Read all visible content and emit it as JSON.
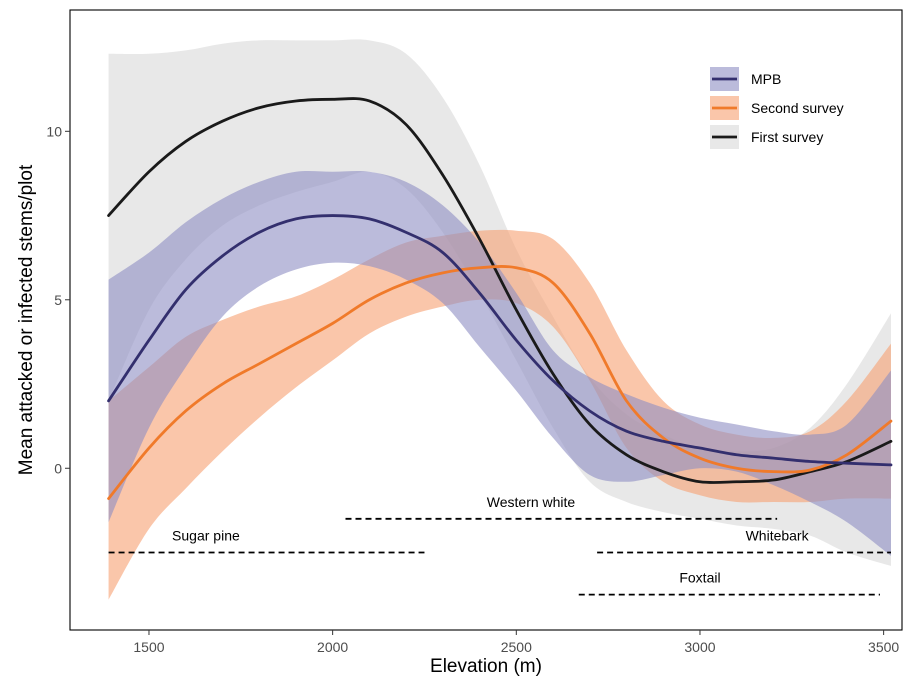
{
  "chart_data": {
    "type": "line",
    "xlabel": "Elevation (m)",
    "ylabel": "Mean attacked or infected stems/plot",
    "xlim": [
      1285,
      3550
    ],
    "ylim": [
      -4.8,
      13.6
    ],
    "xticks": [
      1500,
      2000,
      2500,
      3000,
      3500
    ],
    "yticks": [
      0,
      5,
      10
    ],
    "grid": false,
    "legend_position": "top-right",
    "series": [
      {
        "name": "First survey",
        "color": "#1a1a1a",
        "band_color": "#d9d9d9",
        "x": [
          1390,
          1500,
          1600,
          1700,
          1800,
          1900,
          2000,
          2100,
          2200,
          2300,
          2400,
          2500,
          2600,
          2700,
          2800,
          2900,
          3000,
          3100,
          3200,
          3300,
          3400,
          3520
        ],
        "y": [
          7.5,
          8.8,
          9.7,
          10.3,
          10.7,
          10.9,
          10.95,
          10.9,
          10.2,
          8.7,
          6.8,
          4.7,
          2.8,
          1.3,
          0.4,
          -0.1,
          -0.4,
          -0.4,
          -0.35,
          -0.1,
          0.2,
          0.8
        ],
        "lower": [
          2.0,
          4.7,
          6.2,
          7.2,
          7.8,
          8.2,
          8.5,
          8.8,
          8.3,
          7.0,
          5.2,
          3.2,
          1.2,
          -0.4,
          -1.0,
          -1.3,
          -1.5,
          -1.7,
          -1.8,
          -2.0,
          -2.5,
          -2.9
        ],
        "upper": [
          12.3,
          12.3,
          12.4,
          12.6,
          12.7,
          12.7,
          12.7,
          12.7,
          12.3,
          11.0,
          9.0,
          6.5,
          4.5,
          2.7,
          1.6,
          1.0,
          0.6,
          0.5,
          0.6,
          1.2,
          2.5,
          4.6
        ]
      },
      {
        "name": "Second survey",
        "color": "#f07a2a",
        "band_color": "#f7a072",
        "x": [
          1390,
          1500,
          1600,
          1700,
          1800,
          1900,
          2000,
          2100,
          2200,
          2300,
          2400,
          2500,
          2600,
          2700,
          2800,
          2900,
          3000,
          3100,
          3200,
          3300,
          3400,
          3520
        ],
        "y": [
          -0.9,
          0.6,
          1.7,
          2.5,
          3.1,
          3.7,
          4.3,
          5.0,
          5.5,
          5.8,
          5.95,
          5.95,
          5.5,
          4.0,
          2.0,
          0.9,
          0.3,
          0.0,
          -0.1,
          -0.05,
          0.4,
          1.4
        ],
        "lower": [
          -3.9,
          -1.8,
          -0.6,
          0.5,
          1.5,
          2.4,
          3.2,
          4.0,
          4.5,
          4.8,
          5.0,
          4.9,
          4.2,
          2.6,
          0.6,
          -0.4,
          -0.8,
          -1.0,
          -1.0,
          -1.0,
          -0.9,
          -0.9
        ],
        "upper": [
          2.0,
          3.0,
          3.9,
          4.4,
          4.8,
          5.1,
          5.6,
          6.2,
          6.7,
          6.9,
          7.05,
          7.05,
          6.8,
          5.5,
          3.5,
          2.0,
          1.3,
          1.0,
          0.9,
          1.1,
          2.0,
          3.7
        ]
      },
      {
        "name": "MPB",
        "color": "#332f6e",
        "band_color": "#8e8ec3",
        "x": [
          1390,
          1500,
          1600,
          1700,
          1800,
          1900,
          2000,
          2100,
          2200,
          2300,
          2400,
          2500,
          2600,
          2700,
          2800,
          2900,
          3000,
          3100,
          3200,
          3300,
          3400,
          3520
        ],
        "y": [
          2.0,
          3.8,
          5.3,
          6.3,
          7.0,
          7.4,
          7.5,
          7.4,
          7.0,
          6.4,
          5.2,
          3.8,
          2.6,
          1.7,
          1.1,
          0.8,
          0.6,
          0.4,
          0.3,
          0.2,
          0.15,
          0.1
        ],
        "lower": [
          -1.6,
          1.2,
          3.0,
          4.5,
          5.4,
          5.9,
          6.1,
          6.0,
          5.6,
          4.9,
          3.6,
          2.3,
          0.9,
          -0.2,
          -0.4,
          -0.2,
          0.0,
          -0.1,
          -0.5,
          -1.0,
          -1.6,
          -2.6
        ],
        "upper": [
          5.6,
          6.4,
          7.3,
          8.0,
          8.5,
          8.8,
          8.8,
          8.8,
          8.5,
          7.8,
          6.7,
          5.2,
          3.5,
          2.7,
          2.2,
          1.8,
          1.5,
          1.3,
          1.1,
          1.0,
          1.3,
          2.9
        ]
      }
    ],
    "ranges": [
      {
        "name": "Western white",
        "label": "Western white",
        "x_start": 2035,
        "x_end": 3210,
        "y": -1.5
      },
      {
        "name": "Sugar pine",
        "label": "Sugar pine",
        "x_start": 1390,
        "x_end": 2250,
        "y": -2.5
      },
      {
        "name": "Whitebark",
        "label": "Whitebark",
        "x_start": 2720,
        "x_end": 3520,
        "y": -2.5
      },
      {
        "name": "Foxtail",
        "label": "Foxtail",
        "x_start": 2670,
        "x_end": 3490,
        "y": -3.75
      }
    ],
    "legend": [
      "MPB",
      "Second survey",
      "First survey"
    ]
  }
}
